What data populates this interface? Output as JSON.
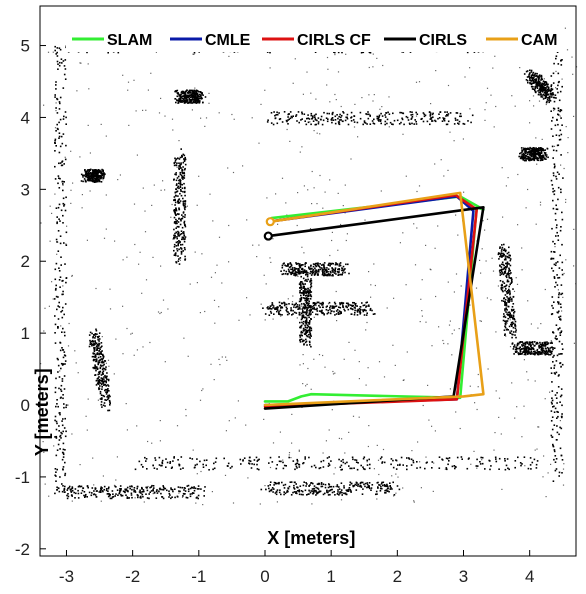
{
  "chart_data": {
    "type": "line",
    "xlabel": "X [meters]",
    "ylabel": "Y [meters]",
    "xlim": [
      -3.4,
      4.7
    ],
    "ylim": [
      -2.1,
      5.55
    ],
    "xticks": [
      -3,
      -2,
      -1,
      0,
      1,
      2,
      3,
      4
    ],
    "yticks": [
      -2,
      -1,
      0,
      1,
      2,
      3,
      4,
      5
    ],
    "xtick_labels": [
      "-3",
      "-2",
      "-1",
      "0",
      "1",
      "2",
      "3",
      "4"
    ],
    "ytick_labels": [
      "-2",
      "-1",
      "0",
      "1",
      "2",
      "3",
      "4",
      "5"
    ],
    "grid": false,
    "legend_position": "top",
    "background": "occupancy grid map",
    "series": [
      {
        "name": "SLAM",
        "color": "#33ee33",
        "x": [
          0.0,
          0.35,
          0.55,
          0.7,
          2.95,
          3.2,
          3.3,
          2.95,
          0.1
        ],
        "y": [
          0.05,
          0.05,
          0.12,
          0.15,
          0.1,
          2.75,
          2.72,
          2.9,
          2.6
        ]
      },
      {
        "name": "CMLE",
        "color": "#0a1aa8",
        "x": [
          0.0,
          2.9,
          3.15,
          2.9,
          0.05
        ],
        "y": [
          0.0,
          0.08,
          2.7,
          2.9,
          2.55
        ]
      },
      {
        "name": "CIRLS CF",
        "color": "#dd1111",
        "x": [
          0.0,
          2.9,
          3.2,
          2.88,
          0.06
        ],
        "y": [
          -0.02,
          0.08,
          2.72,
          2.92,
          2.55
        ]
      },
      {
        "name": "CIRLS",
        "color": "#000000",
        "x": [
          0.0,
          2.85,
          3.3,
          3.3,
          0.05
        ],
        "y": [
          -0.05,
          0.12,
          2.75,
          2.75,
          2.35
        ]
      },
      {
        "name": "CAM",
        "color": "#e8a018",
        "x": [
          0.0,
          3.0,
          3.3,
          2.95,
          0.08
        ],
        "y": [
          0.0,
          0.12,
          0.15,
          2.95,
          2.55
        ]
      }
    ],
    "start_markers": [
      {
        "series": "CIRLS",
        "x": 0.05,
        "y": 2.35
      },
      {
        "series": "CAM",
        "x": 0.08,
        "y": 2.55
      }
    ]
  }
}
